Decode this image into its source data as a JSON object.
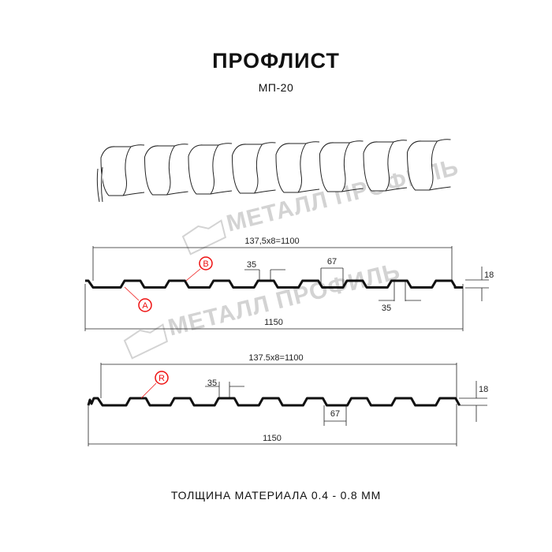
{
  "header": {
    "title": "ПРОФЛИСТ",
    "subtitle": "МП-20"
  },
  "watermark": "МЕТАЛЛ ПРОФИЛЬ",
  "profile_a": {
    "pitch_label": "137,5x8=1100",
    "crest_label": "35",
    "valley_label": "67",
    "bottom_crest_label": "35",
    "height_label": "18",
    "width_label": "1150",
    "marker_a": "A",
    "marker_b": "B"
  },
  "profile_b": {
    "pitch_label": "137.5x8=1100",
    "crest_label": "35",
    "valley_label": "67",
    "height_label": "18",
    "width_label": "1150",
    "marker_r": "R"
  },
  "footer": {
    "thickness": "ТОЛЩИНА МАТЕРИАЛА 0.4 - 0.8 ММ"
  },
  "colors": {
    "line": "#111111",
    "marker": "#e0191b",
    "watermark": "#d3d3d3"
  }
}
